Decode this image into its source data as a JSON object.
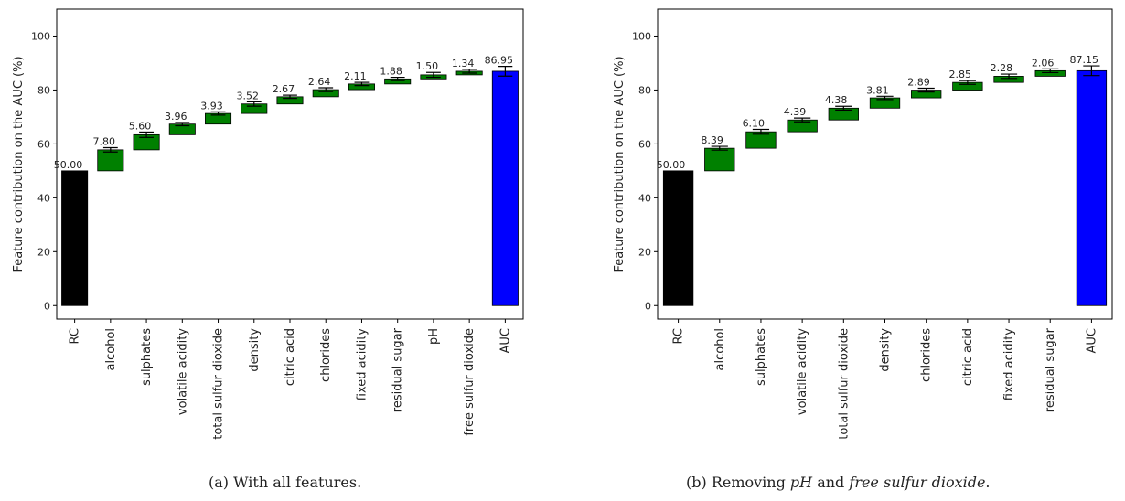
{
  "chart_data": [
    {
      "type": "bar",
      "subtype": "waterfall",
      "ylabel": "Feature contribution on the AUC (%)",
      "xlabel": "",
      "ylim": [
        -5,
        110
      ],
      "yticks": [
        0,
        20,
        40,
        60,
        80,
        100
      ],
      "grid": false,
      "categories": [
        "RC",
        "alcohol",
        "sulphates",
        "volatile acidity",
        "total sulfur dioxide",
        "density",
        "citric acid",
        "chlorides",
        "fixed acidity",
        "residual sugar",
        "pH",
        "free sulfur dioxide",
        "AUC"
      ],
      "values": [
        50.0,
        7.8,
        5.6,
        3.96,
        3.93,
        3.52,
        2.67,
        2.64,
        2.11,
        1.88,
        1.5,
        1.34,
        86.95
      ],
      "labels": [
        "50.00",
        "7.80",
        "5.60",
        "3.96",
        "3.93",
        "3.52",
        "2.67",
        "2.64",
        "2.11",
        "1.88",
        "1.50",
        "1.34",
        "86.95"
      ],
      "errors": [
        0,
        0.8,
        1.0,
        0.6,
        0.6,
        0.8,
        0.6,
        0.7,
        0.6,
        0.6,
        0.9,
        0.7,
        1.8
      ],
      "colors": [
        "#000000",
        "#008000",
        "#008000",
        "#008000",
        "#008000",
        "#008000",
        "#008000",
        "#008000",
        "#008000",
        "#008000",
        "#008000",
        "#008000",
        "#0000ff"
      ],
      "caption": "(a) With all features."
    },
    {
      "type": "bar",
      "subtype": "waterfall",
      "ylabel": "Feature contribution on the AUC (%)",
      "xlabel": "",
      "ylim": [
        -5,
        110
      ],
      "yticks": [
        0,
        20,
        40,
        60,
        80,
        100
      ],
      "grid": false,
      "categories": [
        "RC",
        "alcohol",
        "sulphates",
        "volatile acidity",
        "total sulfur dioxide",
        "density",
        "chlorides",
        "citric acid",
        "fixed acidity",
        "residual sugar",
        "AUC"
      ],
      "values": [
        50.0,
        8.39,
        6.1,
        4.39,
        4.38,
        3.81,
        2.89,
        2.85,
        2.28,
        2.06,
        87.15
      ],
      "labels": [
        "50.00",
        "8.39",
        "6.10",
        "4.39",
        "4.38",
        "3.81",
        "2.89",
        "2.85",
        "2.28",
        "2.06",
        "87.15"
      ],
      "errors": [
        0,
        0.7,
        0.9,
        0.7,
        0.7,
        0.6,
        0.7,
        0.7,
        0.8,
        0.7,
        1.8
      ],
      "colors": [
        "#000000",
        "#008000",
        "#008000",
        "#008000",
        "#008000",
        "#008000",
        "#008000",
        "#008000",
        "#008000",
        "#008000",
        "#0000ff"
      ],
      "caption_prefix": "(b) Removing ",
      "caption_term1": "pH",
      "caption_mid": " and ",
      "caption_term2": "free sulfur dioxide",
      "caption_suffix": "."
    }
  ]
}
